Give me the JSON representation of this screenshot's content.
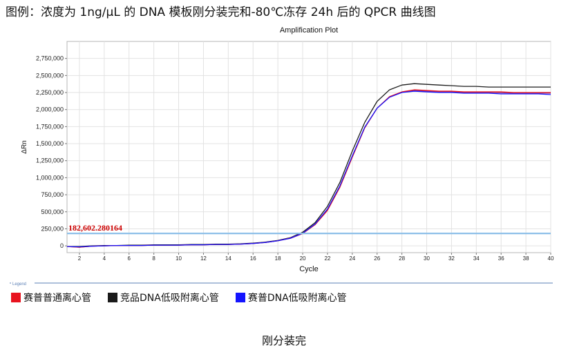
{
  "figure": {
    "caption": "图例：浓度为 1ng/μL 的 DNA 模板刚分装完和-80℃冻存 24h 后的 QPCR 曲线图",
    "bottom_caption": "刚分装完",
    "legend_title": "Legend",
    "threshold_label": "182,602.280164"
  },
  "colors": {
    "series_red": "#e8131f",
    "series_black": "#1a1a1a",
    "series_blue": "#1414ff",
    "series_gray": "#444444",
    "series_purple": "#8a3d9a",
    "threshold": "#8cbfe8",
    "threshold_label": "#cc0000",
    "grid": "#e2e2e2",
    "legend_line": "#5a7fb5"
  },
  "chart_data": {
    "type": "line",
    "title": "Amplification Plot",
    "xlabel": "Cycle",
    "ylabel": "ΔRn",
    "xlim": [
      1,
      40
    ],
    "ylim": [
      -100000,
      3000000
    ],
    "grid": true,
    "legend_placement": "bottom",
    "x_ticks": [
      2,
      4,
      6,
      8,
      10,
      12,
      14,
      16,
      18,
      20,
      22,
      24,
      26,
      28,
      30,
      32,
      34,
      36,
      38,
      40
    ],
    "y_ticks": [
      0,
      250000,
      500000,
      750000,
      1000000,
      1250000,
      1500000,
      1750000,
      2000000,
      2250000,
      2500000,
      2750000
    ],
    "y_tick_labels": [
      "0",
      "250,000",
      "500,000",
      "750,000",
      "1,000,000",
      "1,250,000",
      "1,500,000",
      "1,750,000",
      "2,000,000",
      "2,250,000",
      "2,500,000",
      "2,750,000"
    ],
    "threshold": 182602.280164,
    "x": [
      1,
      2,
      3,
      4,
      5,
      6,
      7,
      8,
      9,
      10,
      11,
      12,
      13,
      14,
      15,
      16,
      17,
      18,
      19,
      20,
      21,
      22,
      23,
      24,
      25,
      26,
      27,
      28,
      29,
      30,
      31,
      32,
      33,
      34,
      35,
      36,
      37,
      38,
      39,
      40
    ],
    "series": [
      {
        "name": "赛普普通离心管",
        "color": "#e8131f",
        "values": [
          -10000,
          -20000,
          -5000,
          0,
          5000,
          5000,
          5000,
          10000,
          10000,
          10000,
          15000,
          15000,
          20000,
          20000,
          25000,
          35000,
          50000,
          75000,
          110000,
          180000,
          310000,
          520000,
          860000,
          1300000,
          1730000,
          2020000,
          2190000,
          2260000,
          2290000,
          2280000,
          2270000,
          2270000,
          2260000,
          2260000,
          2260000,
          2260000,
          2250000,
          2250000,
          2250000,
          2250000
        ]
      },
      {
        "name": "竞品DNA低吸附离心管",
        "color": "#1a1a1a",
        "values": [
          -10000,
          -10000,
          0,
          5000,
          5000,
          10000,
          10000,
          15000,
          15000,
          15000,
          20000,
          20000,
          25000,
          25000,
          30000,
          40000,
          55000,
          80000,
          120000,
          200000,
          340000,
          580000,
          930000,
          1390000,
          1810000,
          2120000,
          2290000,
          2360000,
          2380000,
          2370000,
          2360000,
          2350000,
          2340000,
          2340000,
          2330000,
          2330000,
          2330000,
          2330000,
          2330000,
          2330000
        ]
      },
      {
        "name": "赛普DNA低吸附离心管",
        "color": "#1414ff",
        "values": [
          -10000,
          -15000,
          -5000,
          0,
          5000,
          5000,
          5000,
          10000,
          10000,
          10000,
          15000,
          15000,
          20000,
          20000,
          25000,
          35000,
          50000,
          75000,
          110000,
          185000,
          320000,
          540000,
          880000,
          1320000,
          1740000,
          2020000,
          2180000,
          2250000,
          2270000,
          2260000,
          2250000,
          2250000,
          2240000,
          2240000,
          2240000,
          2230000,
          2230000,
          2230000,
          2230000,
          2220000
        ]
      },
      {
        "color": "#8a3d9a",
        "values": [
          -10000,
          -20000,
          -5000,
          0,
          5000,
          5000,
          5000,
          10000,
          10000,
          10000,
          15000,
          15000,
          20000,
          20000,
          25000,
          35000,
          50000,
          75000,
          115000,
          185000,
          315000,
          530000,
          870000,
          1310000,
          1735000,
          2020000,
          2185000,
          2255000,
          2280000,
          2270000,
          2260000,
          2260000,
          2250000,
          2250000,
          2250000,
          2245000,
          2240000,
          2240000,
          2240000,
          2240000
        ]
      }
    ]
  }
}
